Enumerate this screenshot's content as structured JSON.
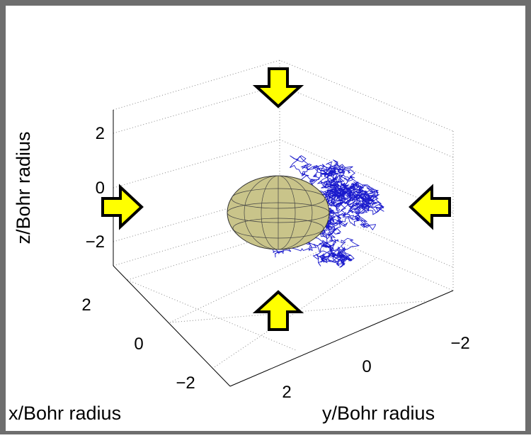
{
  "axes": {
    "z": {
      "label": "z/Bohr radius",
      "ticks": [
        "2",
        "0",
        "−2"
      ]
    },
    "x": {
      "label": "x/Bohr radius",
      "ticks": [
        "2",
        "0",
        "−2"
      ]
    },
    "y": {
      "label": "y/Bohr radius",
      "ticks": [
        "2",
        "0",
        "−2"
      ]
    }
  }
}
